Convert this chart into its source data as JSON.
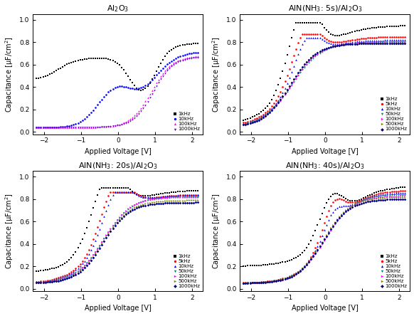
{
  "titles": [
    "Al$_2$O$_3$",
    "AlN(NH$_3$: 5s)/Al$_2$O$_3$",
    "AlN(NH$_3$: 20s)/Al$_2$O$_3$",
    "AlN(NH$_3$: 40s)/Al$_2$O$_3$"
  ],
  "xlabel": "Applied Voltage [V]",
  "ylabel": "Capacitance [μF/cm$^2$]",
  "xlim": [
    -2.3,
    2.3
  ],
  "ylim": [
    -0.02,
    1.05
  ],
  "yticks": [
    0.0,
    0.2,
    0.4,
    0.6,
    0.8,
    1.0
  ],
  "xticks": [
    -2,
    -1,
    0,
    1,
    2
  ],
  "plot0_freqs": [
    "1kHz",
    "10kHz",
    "100kHz",
    "1000kHz"
  ],
  "plot0_colors": [
    "black",
    "blue",
    "magenta",
    "#6600cc"
  ],
  "plot0_markers": [
    "s",
    "o",
    "^",
    "v"
  ],
  "plot1_freqs": [
    "1kHz",
    "5kHz",
    "10kHz",
    "50kHz",
    "100kHz",
    "500kHz",
    "1000kHz"
  ],
  "plot1_colors": [
    "black",
    "red",
    "blue",
    "#008080",
    "magenta",
    "#808000",
    "#000080"
  ],
  "plot1_markers": [
    "s",
    "o",
    "^",
    "v",
    ">",
    ">",
    "D"
  ],
  "plot2_freqs": [
    "1kHz",
    "5kHz",
    "10kHz",
    "50kHz",
    "100kHz",
    "500kHz",
    "1000kHz"
  ],
  "plot2_colors": [
    "black",
    "red",
    "blue",
    "#008080",
    "magenta",
    "#808000",
    "#000080"
  ],
  "plot2_markers": [
    "s",
    "o",
    "^",
    "v",
    ">",
    ">",
    "D"
  ],
  "plot3_freqs": [
    "1kHz",
    "5kHz",
    "10kHz",
    "50kHz",
    "100kHz",
    "500kHz",
    "1000kHz"
  ],
  "plot3_colors": [
    "black",
    "red",
    "blue",
    "#008080",
    "magenta",
    "#808000",
    "#000080"
  ],
  "plot3_markers": [
    "s",
    "o",
    "^",
    "v",
    ">",
    ">",
    "D"
  ]
}
